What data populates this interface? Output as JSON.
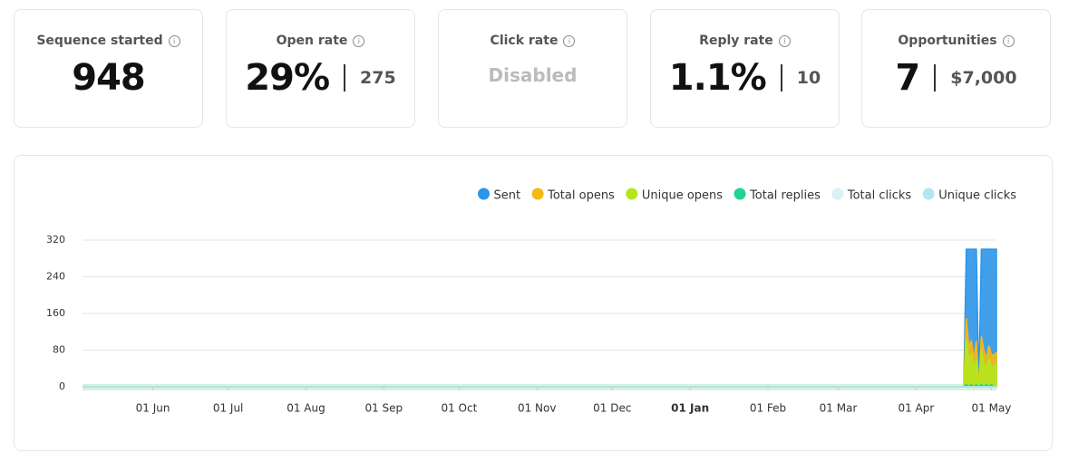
{
  "cards": [
    {
      "title": "Sequence started",
      "value": "948"
    },
    {
      "title": "Open rate",
      "value": "29%",
      "secondary": "275"
    },
    {
      "title": "Click rate",
      "value": "Disabled"
    },
    {
      "title": "Reply rate",
      "value": "1.1%",
      "secondary": "10"
    },
    {
      "title": "Opportunities",
      "value": "7",
      "secondary": "$7,000"
    }
  ],
  "chart_data": {
    "type": "area",
    "x": [
      0,
      351,
      352,
      353,
      354,
      355,
      356,
      357,
      358,
      359,
      360,
      361,
      362,
      363,
      364
    ],
    "series": [
      {
        "name": "Sent",
        "color": "#2d95e8",
        "values": [
          0,
          0,
          300,
          300,
          300,
          300,
          300,
          0,
          300,
          300,
          300,
          300,
          300,
          300,
          300
        ]
      },
      {
        "name": "Total opens",
        "color": "#f5b914",
        "values": [
          0,
          0,
          150,
          90,
          100,
          60,
          100,
          0,
          110,
          80,
          60,
          90,
          70,
          70,
          75
        ]
      },
      {
        "name": "Unique opens",
        "color": "#b5e61d",
        "values": [
          0,
          0,
          100,
          60,
          70,
          40,
          60,
          0,
          80,
          50,
          40,
          60,
          40,
          45,
          50
        ]
      },
      {
        "name": "Total replies",
        "color": "#1fd490",
        "values": [
          0,
          0,
          5,
          0,
          5,
          0,
          5,
          0,
          5,
          0,
          5,
          0,
          5,
          0,
          0
        ]
      },
      {
        "name": "Total clicks",
        "color": "#d9f1f8",
        "values": [
          0,
          0,
          0,
          0,
          0,
          0,
          0,
          0,
          0,
          0,
          0,
          0,
          0,
          0,
          0
        ]
      },
      {
        "name": "Unique clicks",
        "color": "#b4e5f3",
        "values": [
          0,
          0,
          0,
          0,
          0,
          0,
          0,
          0,
          0,
          0,
          0,
          0,
          0,
          0,
          0
        ]
      }
    ],
    "xlim": [
      0,
      364
    ],
    "xticks": [
      {
        "value": 28,
        "label": "01 Jun"
      },
      {
        "value": 58,
        "label": "01 Jul"
      },
      {
        "value": 89,
        "label": "01 Aug"
      },
      {
        "value": 120,
        "label": "01 Sep"
      },
      {
        "value": 150,
        "label": "01 Oct"
      },
      {
        "value": 181,
        "label": "01 Nov"
      },
      {
        "value": 211,
        "label": "01 Dec"
      },
      {
        "value": 242,
        "label": "01 Jan",
        "bold": true
      },
      {
        "value": 273,
        "label": "01 Feb"
      },
      {
        "value": 301,
        "label": "01 Mar"
      },
      {
        "value": 332,
        "label": "01 Apr"
      },
      {
        "value": 362,
        "label": "01 May"
      }
    ],
    "ylim": [
      0,
      320
    ],
    "yticks": [
      0,
      80,
      160,
      240,
      320
    ],
    "grid": true,
    "legend": "top-right"
  }
}
